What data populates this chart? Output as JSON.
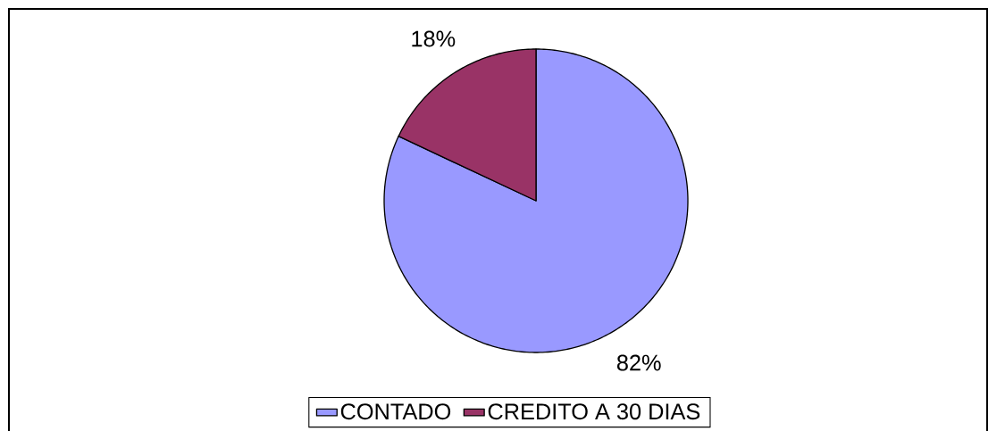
{
  "chart_data": {
    "type": "pie",
    "categories": [
      "CONTADO",
      "CREDITO A 30 DIAS"
    ],
    "values": [
      82,
      18
    ],
    "colors": [
      "#9999ff",
      "#993366"
    ],
    "value_labels": [
      "82%",
      "18%"
    ],
    "legend": "bottom"
  }
}
